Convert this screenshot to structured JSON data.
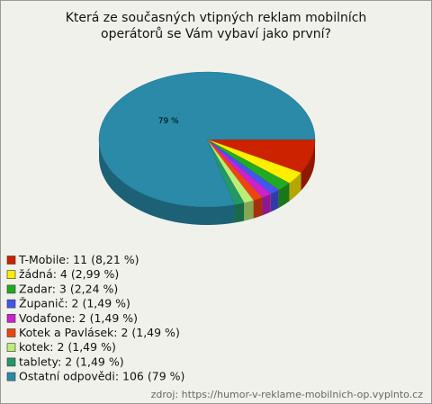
{
  "chart_data": {
    "type": "pie",
    "title": "Která ze současných vtipných reklam mobilních operátorů se Vám vybaví jako první?",
    "categories": [
      "T-Mobile",
      "žádná",
      "Zadar",
      "Županič",
      "Vodafone",
      "Kotek a Pavlásek",
      "kotek",
      "tablety",
      "Ostatní odpovědi"
    ],
    "labels": [
      "T-Mobile: 11 (8,21 %)",
      "žádná: 4 (2,99 %)",
      "Zadar: 3 (2,24 %)",
      "Županič: 2 (1,49 %)",
      "Vodafone: 2 (1,49 %)",
      "Kotek a Pavlásek: 2 (1,49 %)",
      "kotek: 2 (1,49 %)",
      "tablety: 2 (1,49 %)",
      "Ostatní odpovědi: 106 (79 %)"
    ],
    "values": [
      8.21,
      2.99,
      2.24,
      1.49,
      1.49,
      1.49,
      1.49,
      1.49,
      79
    ],
    "value_labels": [
      null,
      null,
      null,
      null,
      null,
      null,
      null,
      null,
      "79 %"
    ],
    "colors": [
      "#cc2200",
      "#ffee00",
      "#22aa22",
      "#4455ee",
      "#cc22cc",
      "#ee4411",
      "#bbee77",
      "#229966",
      "#2a8aa8"
    ],
    "source": "zdroj: https://humor-v-reklame-mobilnich-op.vyplnto.cz"
  }
}
